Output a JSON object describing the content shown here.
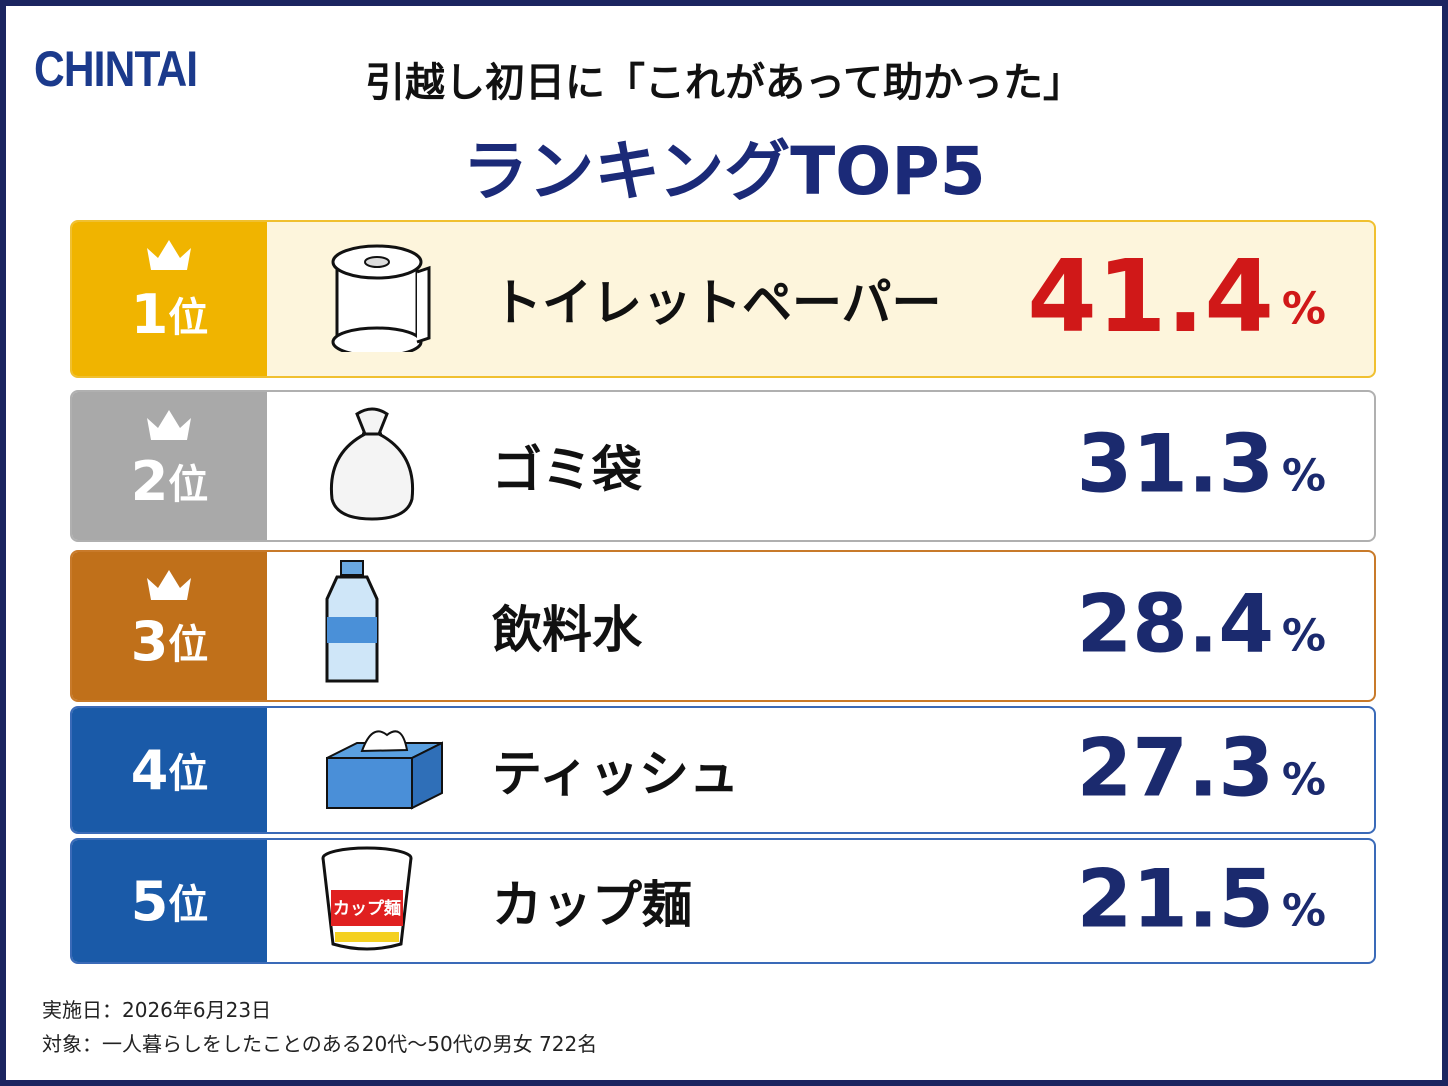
{
  "logo": "CHINTAI",
  "header": {
    "title": "引越し初日に「これがあって助かった」",
    "subtitle": "ランキングTOP5"
  },
  "rank_suffix": "位",
  "unit": "%",
  "items": [
    {
      "rank": "1",
      "label": "トイレットペーパー",
      "value": "41.4"
    },
    {
      "rank": "2",
      "label": "ゴミ袋",
      "value": "31.3"
    },
    {
      "rank": "3",
      "label": "飲料水",
      "value": "28.4"
    },
    {
      "rank": "4",
      "label": "ティッシュ",
      "value": "27.3"
    },
    {
      "rank": "5",
      "label": "カップ麺",
      "value": "21.5",
      "icon_text": "カップ麺"
    }
  ],
  "footer": {
    "date": "実施日：2026年6月23日",
    "target": "対象：一人暮らしをしたことのある20代〜50代の男女 722名"
  }
}
